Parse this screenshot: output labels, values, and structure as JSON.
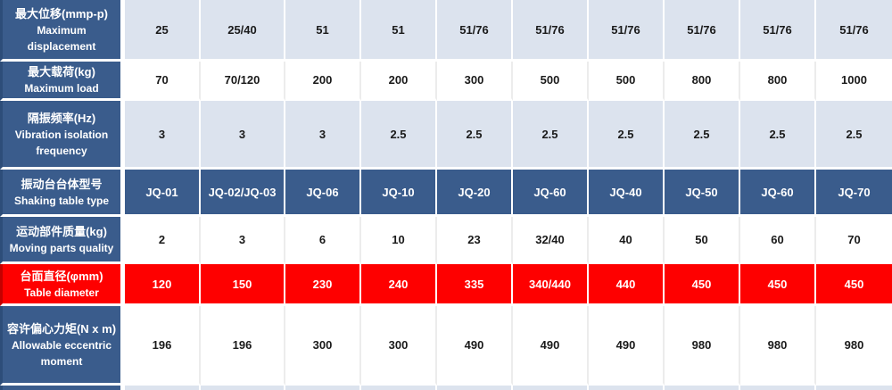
{
  "table": {
    "colors": {
      "header_blue": "#3a5c8c",
      "light_blue": "#dce3ee",
      "red": "#fe0000",
      "separator_white": "#ffffff"
    },
    "rows": [
      {
        "id": "max-displacement",
        "label_zh": "最大位移(mmp-p)",
        "label_en": "Maximum displacement",
        "style": "light",
        "values": [
          "25",
          "25/40",
          "51",
          "51",
          "51/76",
          "51/76",
          "51/76",
          "51/76",
          "51/76",
          "51/76"
        ]
      },
      {
        "id": "max-load",
        "label_zh": "最大载荷(kg)",
        "label_en": "Maximum load",
        "style": "white",
        "values": [
          "70",
          "70/120",
          "200",
          "200",
          "300",
          "500",
          "500",
          "800",
          "800",
          "1000"
        ]
      },
      {
        "id": "vibration-isolation-frequency",
        "label_zh": "隔振频率(Hz)",
        "label_en": "Vibration isolation frequency",
        "style": "light",
        "values": [
          "3",
          "3",
          "3",
          "2.5",
          "2.5",
          "2.5",
          "2.5",
          "2.5",
          "2.5",
          "2.5"
        ]
      },
      {
        "id": "shaking-table-type",
        "label_zh": "振动台台体型号",
        "label_en": "Shaking table type",
        "style": "dark",
        "values": [
          "JQ-01",
          "JQ-02/JQ-03",
          "JQ-06",
          "JQ-10",
          "JQ-20",
          "JQ-60",
          "JQ-40",
          "JQ-50",
          "JQ-60",
          "JQ-70"
        ]
      },
      {
        "id": "moving-parts-quality",
        "label_zh": "运动部件质量(kg)",
        "label_en": "Moving parts quality",
        "style": "white",
        "values": [
          "2",
          "3",
          "6",
          "10",
          "23",
          "32/40",
          "40",
          "50",
          "60",
          "70"
        ]
      },
      {
        "id": "table-diameter",
        "label_zh": "台面直径(φmm)",
        "label_en": "Table diameter",
        "style": "red",
        "values": [
          "120",
          "150",
          "230",
          "240",
          "335",
          "340/440",
          "440",
          "450",
          "450",
          "450"
        ]
      },
      {
        "id": "allowable-eccentric-moment",
        "label_zh": "容许偏心力矩(N x m)",
        "label_en": "Allowable eccentric moment",
        "style": "white",
        "values": [
          "196",
          "196",
          "300",
          "300",
          "490",
          "490",
          "490",
          "980",
          "980",
          "980"
        ]
      },
      {
        "id": "partial-row",
        "label_zh": "",
        "label_en": "",
        "style": "light",
        "values": [
          "",
          "",
          "",
          "",
          "",
          "",
          "",
          "",
          "",
          ""
        ]
      }
    ]
  }
}
